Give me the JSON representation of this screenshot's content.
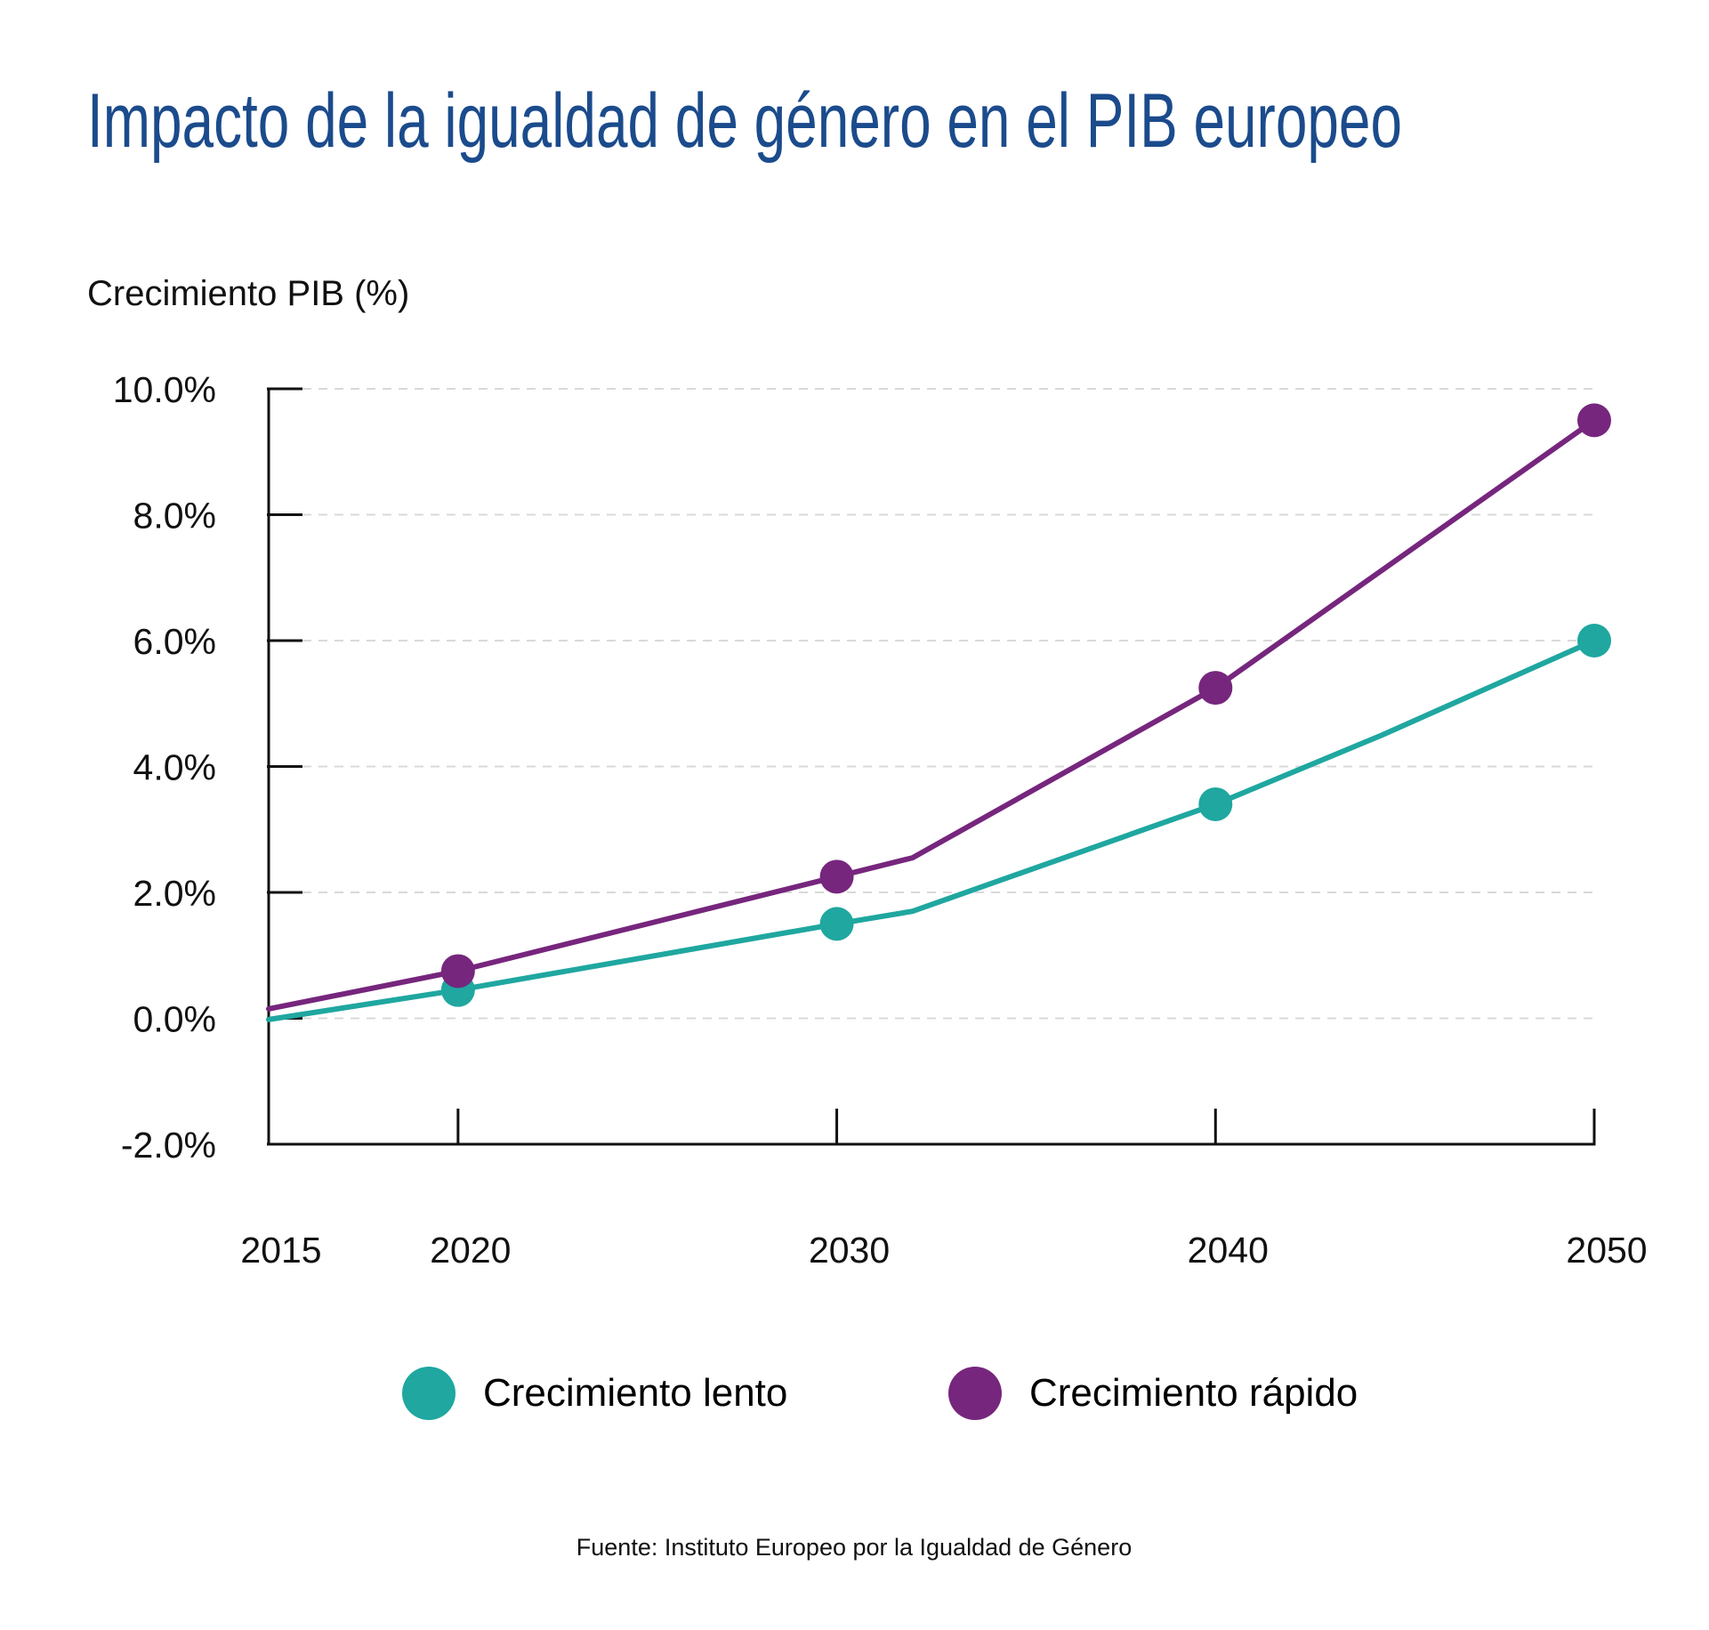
{
  "title": "Impacto de la igualdad de género en el PIB europeo",
  "y_axis_label": "Crecimiento PIB (%)",
  "source": "Fuente: Instituto Europeo por la Igualdad de Género",
  "colors": {
    "title": "#1b4b8c",
    "lento": "#1fa7a0",
    "rapido": "#76267d",
    "axis": "#111111",
    "grid": "#d9d9d9",
    "text": "#111111"
  },
  "chart_data": {
    "type": "line",
    "title": "Impacto de la igualdad de género en el PIB europeo",
    "xlabel": "",
    "ylabel": "Crecimiento PIB (%)",
    "ylim": [
      -2,
      10
    ],
    "xlim": [
      2015,
      2050
    ],
    "y_ticks": [
      -2,
      0,
      2,
      4,
      6,
      8,
      10
    ],
    "y_tick_labels": [
      "-2.0%",
      "0.0%",
      "2.0%",
      "4.0%",
      "6.0%",
      "8.0%",
      "10.0%"
    ],
    "x_ticks": [
      2015,
      2020,
      2030,
      2040,
      2050
    ],
    "x_tick_labels": [
      "2015",
      "2020",
      "2030",
      "2040",
      "2050"
    ],
    "grid": "horizontal dashed",
    "legend_position": "bottom",
    "series": [
      {
        "name": "Crecimiento lento",
        "color": "#1fa7a0",
        "points": [
          [
            2015,
            -0.02
          ],
          [
            2020,
            0.45
          ],
          [
            2030,
            1.5
          ],
          [
            2032,
            1.7
          ],
          [
            2040,
            3.4
          ],
          [
            2044.4,
            4.5
          ],
          [
            2050,
            6.0
          ]
        ],
        "markers": [
          [
            2020,
            0.45
          ],
          [
            2030,
            1.5
          ],
          [
            2040,
            3.4
          ],
          [
            2050,
            6.0
          ]
        ]
      },
      {
        "name": "Crecimiento rápido",
        "color": "#76267d",
        "points": [
          [
            2015,
            0.15
          ],
          [
            2020,
            0.75
          ],
          [
            2030,
            2.25
          ],
          [
            2032,
            2.55
          ],
          [
            2040,
            5.25
          ],
          [
            2050,
            9.5
          ]
        ],
        "markers": [
          [
            2020,
            0.75
          ],
          [
            2030,
            2.25
          ],
          [
            2040,
            5.25
          ],
          [
            2050,
            9.5
          ]
        ]
      }
    ]
  }
}
